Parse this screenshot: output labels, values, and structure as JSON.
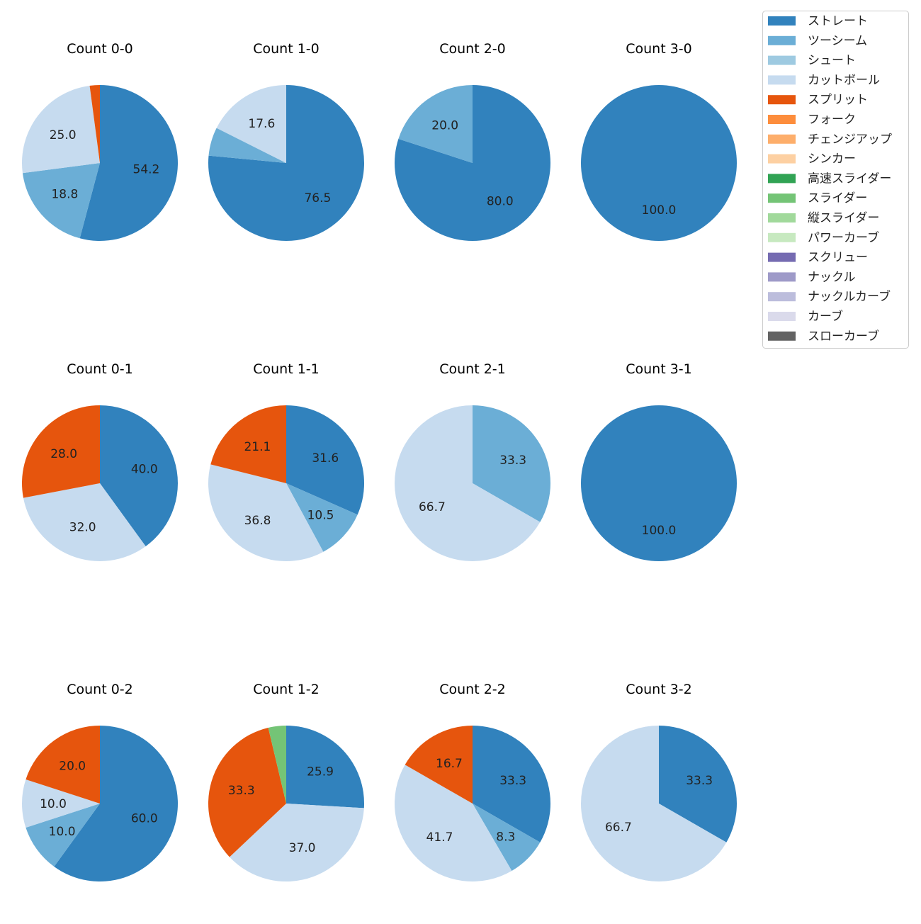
{
  "chart_data": {
    "type": "pie",
    "start_angle": 90,
    "direction": "clockwise",
    "legend_placement": "top-right",
    "legend": [
      {
        "name": "ストレート",
        "color": "#3182bd"
      },
      {
        "name": "ツーシーム",
        "color": "#6baed6"
      },
      {
        "name": "シュート",
        "color": "#9ecae1"
      },
      {
        "name": "カットボール",
        "color": "#c6dbef"
      },
      {
        "name": "スプリット",
        "color": "#e6550d"
      },
      {
        "name": "フォーク",
        "color": "#fd8d3c"
      },
      {
        "name": "チェンジアップ",
        "color": "#fdae6b"
      },
      {
        "name": "シンカー",
        "color": "#fdd0a2"
      },
      {
        "name": "高速スライダー",
        "color": "#31a354"
      },
      {
        "name": "スライダー",
        "color": "#74c476"
      },
      {
        "name": "縦スライダー",
        "color": "#a1d99b"
      },
      {
        "name": "パワーカーブ",
        "color": "#c7e9c0"
      },
      {
        "name": "スクリュー",
        "color": "#756bb1"
      },
      {
        "name": "ナックル",
        "color": "#9e9ac8"
      },
      {
        "name": "ナックルカーブ",
        "color": "#bcbddc"
      },
      {
        "name": "カーブ",
        "color": "#dadaeb"
      },
      {
        "name": "スローカーブ",
        "color": "#636363"
      }
    ],
    "pies": [
      {
        "title": "Count 0-0",
        "slices": [
          {
            "name": "ストレート",
            "value": 54.2
          },
          {
            "name": "ツーシーム",
            "value": 18.8
          },
          {
            "name": "カットボール",
            "value": 25.0
          },
          {
            "name": "スプリット",
            "value": 2.1,
            "label": false
          }
        ]
      },
      {
        "title": "Count 1-0",
        "slices": [
          {
            "name": "ストレート",
            "value": 76.5
          },
          {
            "name": "ツーシーム",
            "value": 5.9,
            "label": false
          },
          {
            "name": "カットボール",
            "value": 17.6
          }
        ]
      },
      {
        "title": "Count 2-0",
        "slices": [
          {
            "name": "ストレート",
            "value": 80.0
          },
          {
            "name": "ツーシーム",
            "value": 20.0
          }
        ]
      },
      {
        "title": "Count 3-0",
        "slices": [
          {
            "name": "ストレート",
            "value": 100.0
          }
        ]
      },
      {
        "title": "Count 0-1",
        "slices": [
          {
            "name": "ストレート",
            "value": 40.0
          },
          {
            "name": "カットボール",
            "value": 32.0
          },
          {
            "name": "スプリット",
            "value": 28.0
          }
        ]
      },
      {
        "title": "Count 1-1",
        "slices": [
          {
            "name": "ストレート",
            "value": 31.6
          },
          {
            "name": "ツーシーム",
            "value": 10.5
          },
          {
            "name": "カットボール",
            "value": 36.8
          },
          {
            "name": "スプリット",
            "value": 21.1
          }
        ]
      },
      {
        "title": "Count 2-1",
        "slices": [
          {
            "name": "ツーシーム",
            "value": 33.3
          },
          {
            "name": "カットボール",
            "value": 66.7
          }
        ]
      },
      {
        "title": "Count 3-1",
        "slices": [
          {
            "name": "ストレート",
            "value": 100.0
          }
        ]
      },
      {
        "title": "Count 0-2",
        "slices": [
          {
            "name": "ストレート",
            "value": 60.0
          },
          {
            "name": "ツーシーム",
            "value": 10.0
          },
          {
            "name": "カットボール",
            "value": 10.0
          },
          {
            "name": "スプリット",
            "value": 20.0
          }
        ]
      },
      {
        "title": "Count 1-2",
        "slices": [
          {
            "name": "ストレート",
            "value": 25.9
          },
          {
            "name": "カットボール",
            "value": 37.0
          },
          {
            "name": "スプリット",
            "value": 33.3
          },
          {
            "name": "スライダー",
            "value": 3.7,
            "label": false
          }
        ]
      },
      {
        "title": "Count 2-2",
        "slices": [
          {
            "name": "ストレート",
            "value": 33.3
          },
          {
            "name": "ツーシーム",
            "value": 8.3
          },
          {
            "name": "カットボール",
            "value": 41.7
          },
          {
            "name": "スプリット",
            "value": 16.7
          }
        ]
      },
      {
        "title": "Count 3-2",
        "slices": [
          {
            "name": "ストレート",
            "value": 33.3
          },
          {
            "name": "カットボール",
            "value": 66.7
          }
        ]
      }
    ]
  }
}
